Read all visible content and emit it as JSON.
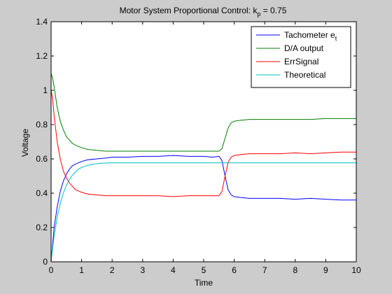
{
  "chart_data": {
    "type": "line",
    "title": "Motor System Proportional Control: k",
    "title_subscript": "p",
    "title_suffix": " = 0.75",
    "xlabel": "Time",
    "ylabel": "Voltage",
    "xlim": [
      0,
      10
    ],
    "ylim": [
      0,
      1.4
    ],
    "xticks": [
      0,
      1,
      2,
      3,
      4,
      5,
      6,
      7,
      8,
      9,
      10
    ],
    "yticks": [
      0,
      0.2,
      0.4,
      0.6,
      0.8,
      1,
      1.2,
      1.4
    ],
    "xtick_labels": [
      "0",
      "1",
      "2",
      "3",
      "4",
      "5",
      "6",
      "7",
      "8",
      "9",
      "10"
    ],
    "ytick_labels": [
      "0",
      "0.2",
      "0.4",
      "0.6",
      "0.8",
      "1",
      "1.2",
      "1.4"
    ],
    "grid": false,
    "legend_position": "top-right",
    "series": [
      {
        "name": "Tachometer e",
        "name_subscript": "t",
        "color": "#0000ff",
        "x": [
          0,
          0.05,
          0.1,
          0.2,
          0.3,
          0.4,
          0.5,
          0.6,
          0.7,
          0.8,
          1.0,
          1.2,
          1.5,
          1.8,
          2.0,
          2.5,
          3.0,
          3.5,
          4.0,
          4.5,
          5.0,
          5.3,
          5.5,
          5.6,
          5.7,
          5.8,
          5.9,
          6.0,
          6.2,
          6.5,
          7.0,
          7.5,
          8.0,
          8.5,
          9.0,
          9.5,
          10.0
        ],
        "y": [
          0,
          0.1,
          0.2,
          0.32,
          0.41,
          0.47,
          0.51,
          0.54,
          0.56,
          0.57,
          0.585,
          0.595,
          0.6,
          0.605,
          0.61,
          0.61,
          0.615,
          0.615,
          0.62,
          0.615,
          0.615,
          0.61,
          0.615,
          0.59,
          0.5,
          0.42,
          0.39,
          0.38,
          0.375,
          0.37,
          0.37,
          0.37,
          0.365,
          0.37,
          0.365,
          0.36,
          0.36
        ]
      },
      {
        "name": "D/A output",
        "color": "#007f00",
        "x": [
          0,
          0.05,
          0.1,
          0.2,
          0.3,
          0.4,
          0.5,
          0.6,
          0.7,
          0.8,
          1.0,
          1.2,
          1.5,
          1.8,
          2.0,
          2.5,
          3.0,
          3.5,
          4.0,
          4.5,
          5.0,
          5.3,
          5.5,
          5.6,
          5.7,
          5.8,
          5.9,
          6.0,
          6.2,
          6.5,
          7.0,
          7.5,
          8.0,
          8.5,
          9.0,
          9.5,
          10.0
        ],
        "y": [
          1.1,
          1.07,
          1.02,
          0.9,
          0.82,
          0.77,
          0.73,
          0.71,
          0.69,
          0.68,
          0.665,
          0.655,
          0.65,
          0.645,
          0.645,
          0.645,
          0.645,
          0.645,
          0.645,
          0.645,
          0.645,
          0.645,
          0.645,
          0.66,
          0.72,
          0.78,
          0.81,
          0.82,
          0.825,
          0.83,
          0.83,
          0.83,
          0.83,
          0.83,
          0.835,
          0.835,
          0.835
        ]
      },
      {
        "name": "ErrSignal",
        "color": "#ff0000",
        "x": [
          0,
          0.05,
          0.1,
          0.2,
          0.3,
          0.4,
          0.5,
          0.6,
          0.7,
          0.8,
          1.0,
          1.2,
          1.5,
          1.8,
          2.0,
          2.5,
          3.0,
          3.5,
          4.0,
          4.5,
          5.0,
          5.3,
          5.5,
          5.6,
          5.7,
          5.8,
          5.9,
          6.0,
          6.2,
          6.5,
          7.0,
          7.5,
          8.0,
          8.5,
          9.0,
          9.5,
          10.0
        ],
        "y": [
          1.0,
          0.95,
          0.85,
          0.7,
          0.6,
          0.53,
          0.49,
          0.46,
          0.44,
          0.42,
          0.405,
          0.395,
          0.39,
          0.385,
          0.385,
          0.385,
          0.385,
          0.385,
          0.38,
          0.385,
          0.385,
          0.385,
          0.385,
          0.41,
          0.5,
          0.58,
          0.61,
          0.62,
          0.625,
          0.63,
          0.63,
          0.63,
          0.635,
          0.63,
          0.635,
          0.64,
          0.64
        ]
      },
      {
        "name": "Theoretical",
        "color": "#00bfbf",
        "x": [
          0,
          0.05,
          0.1,
          0.2,
          0.3,
          0.4,
          0.5,
          0.6,
          0.7,
          0.8,
          0.9,
          1.0,
          1.2,
          1.4,
          1.6,
          1.8,
          2.0,
          2.5,
          3.0,
          4.0,
          5.0,
          6.0,
          7.0,
          8.0,
          9.0,
          10.0
        ],
        "y": [
          0,
          0.08,
          0.15,
          0.26,
          0.34,
          0.4,
          0.445,
          0.48,
          0.505,
          0.525,
          0.54,
          0.55,
          0.562,
          0.57,
          0.574,
          0.576,
          0.577,
          0.577,
          0.577,
          0.577,
          0.577,
          0.577,
          0.577,
          0.577,
          0.577,
          0.577
        ]
      }
    ]
  }
}
